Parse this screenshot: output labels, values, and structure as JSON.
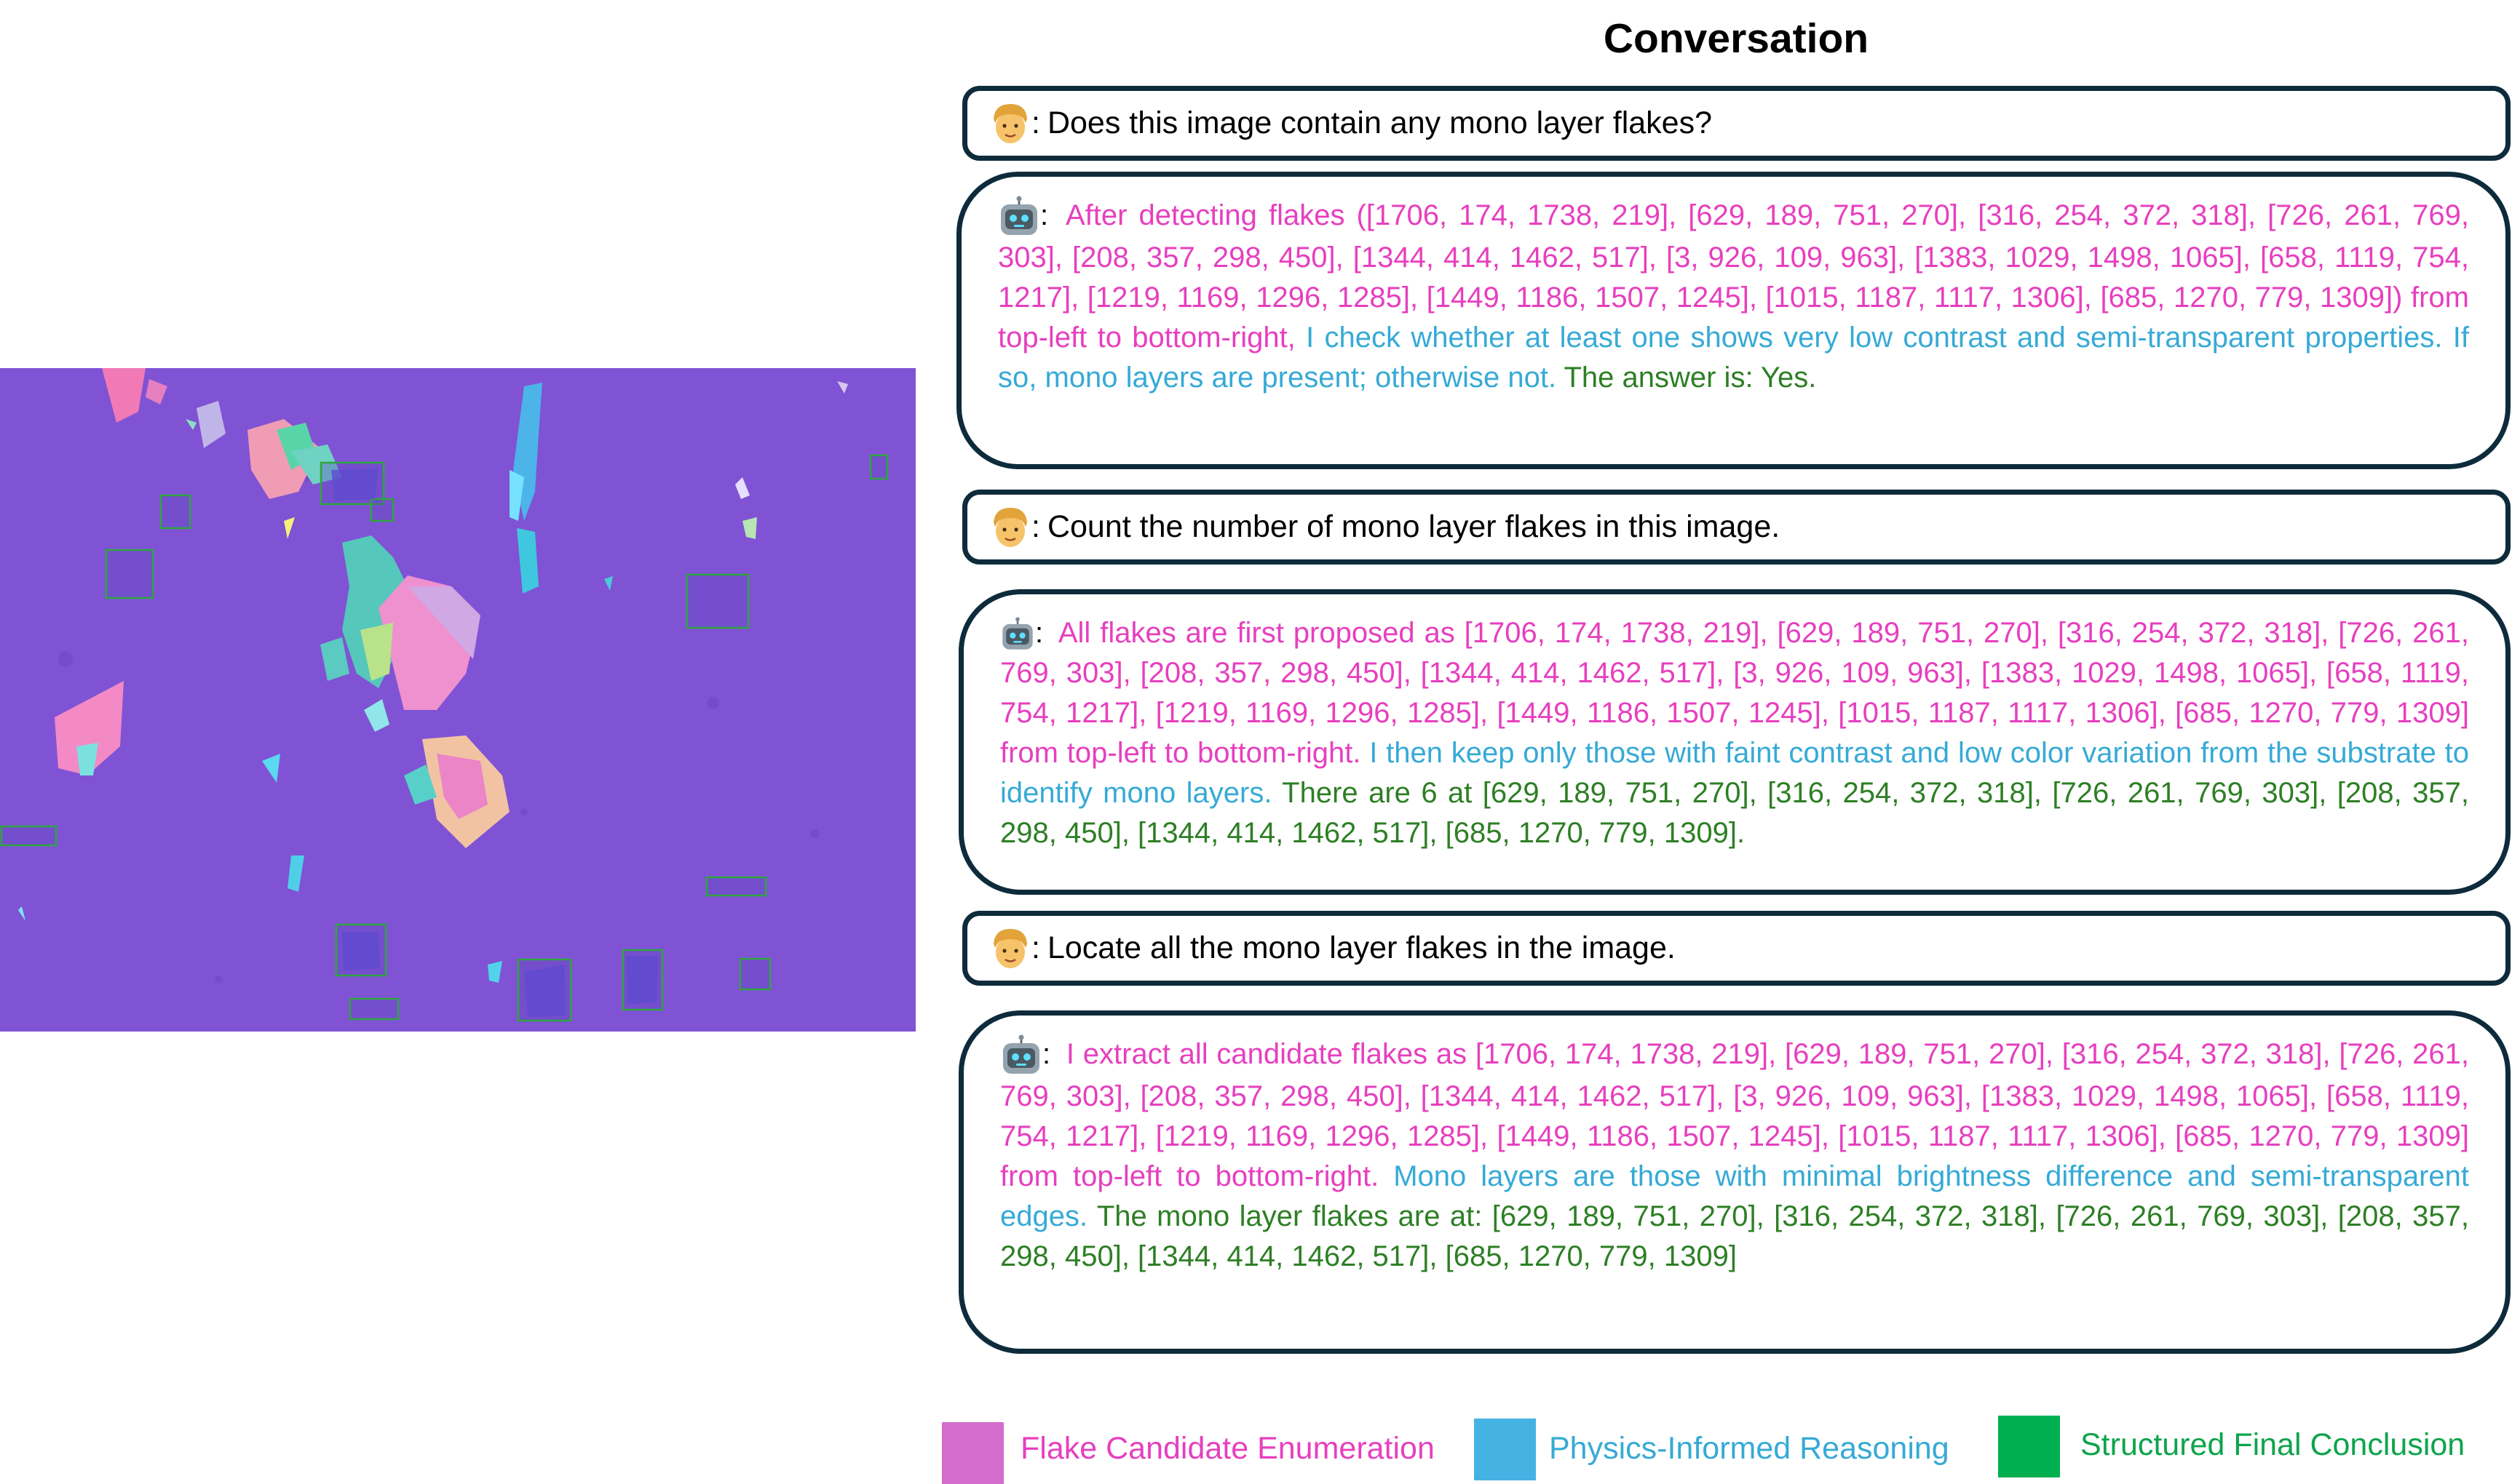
{
  "title": "Conversation",
  "icons": {
    "user": "man-face-icon",
    "bot": "robot-face-icon"
  },
  "colors": {
    "candidate": "#e73fbf",
    "physics": "#36aad6",
    "conclusion": "#2d7f24",
    "bubble_border": "#0d2b3b",
    "substrate": "#7f53d4"
  },
  "conversation": [
    {
      "role": "user",
      "text": "Does this image contain any mono layer flakes?"
    },
    {
      "role": "bot",
      "candidates": "After detecting flakes ([1706, 174, 1738, 219], [629, 189, 751, 270], [316, 254, 372, 318], [726, 261, 769, 303], [208, 357, 298, 450], [1344, 414, 1462, 517], [3, 926, 109, 963], [1383, 1029, 1498, 1065], [658, 1119, 754, 1217], [1219, 1169, 1296, 1285], [1449, 1186, 1507, 1245], [1015, 1187, 1117, 1306], [685, 1270, 779, 1309]) from top-left to bottom-right,",
      "reasoning": "I check whether at least one shows very low contrast and semi-transparent properties.  If so, mono layers are present; otherwise not.",
      "conclusion": "The answer is: Yes."
    },
    {
      "role": "user",
      "text": "Count the number of mono layer flakes in this image."
    },
    {
      "role": "bot",
      "candidates": "All flakes are first proposed as [1706, 174, 1738, 219], [629, 189, 751, 270], [316, 254, 372, 318], [726, 261, 769, 303], [208, 357, 298, 450], [1344, 414, 1462, 517], [3, 926, 109, 963], [1383, 1029, 1498, 1065], [658, 1119, 754, 1217], [1219, 1169, 1296, 1285], [1449, 1186, 1507, 1245], [1015, 1187, 1117, 1306], [685, 1270, 779, 1309] from top-left to bottom-right.",
      "reasoning": "I then keep only those with faint contrast and low color variation from the substrate to identify mono layers.",
      "conclusion": "There are 6 at [629, 189, 751, 270], [316, 254, 372, 318], [726, 261, 769, 303], [208, 357, 298, 450], [1344, 414, 1462, 517], [685, 1270, 779, 1309]."
    },
    {
      "role": "user",
      "text": "Locate all the mono layer flakes in the image."
    },
    {
      "role": "bot",
      "candidates": "I extract all candidate flakes as [1706, 174, 1738, 219], [629, 189, 751, 270], [316, 254, 372, 318], [726, 261, 769, 303], [208, 357, 298, 450], [1344, 414, 1462, 517], [3, 926, 109, 963], [1383, 1029, 1498, 1065], [658, 1119, 754, 1217], [1219, 1169, 1296, 1285], [1449, 1186, 1507, 1245], [1015, 1187, 1117, 1306], [685, 1270, 779, 1309] from top-left to bottom-right.",
      "reasoning": "Mono layers are those with minimal brightness difference and semi-transparent edges.",
      "conclusion": "The mono layer flakes are at: [629, 189, 751, 270], [316, 254, 372, 318], [726, 261, 769, 303], [208, 357, 298, 450], [1344, 414, 1462, 517], [685, 1270, 779, 1309]"
    }
  ],
  "legend": [
    {
      "label": "Flake Candidate Enumeration",
      "color": "#d36ccc"
    },
    {
      "label": "Physics-Informed Reasoning",
      "color": "#45b2e4"
    },
    {
      "label": "Structured Final Conclusion",
      "color": "#00b050"
    }
  ]
}
